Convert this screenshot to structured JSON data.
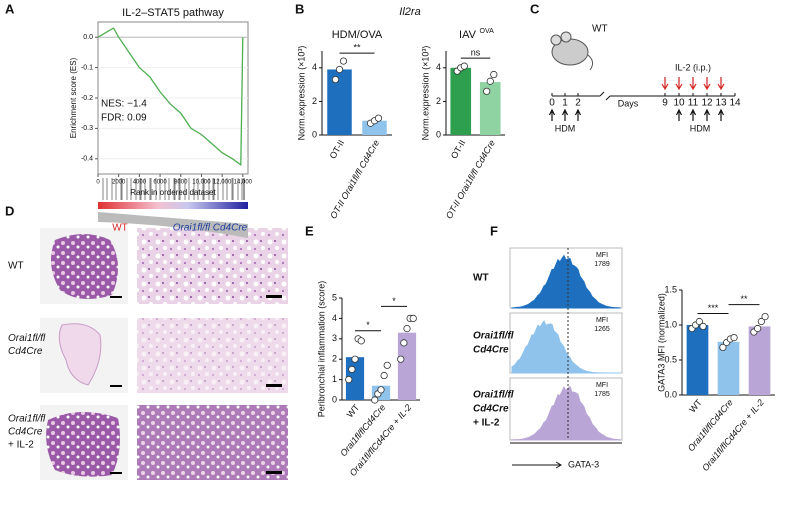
{
  "figure": {
    "panel_labels": [
      "A",
      "B",
      "C",
      "D",
      "E",
      "F"
    ],
    "b_title": "Il2ra",
    "timeline": {
      "strain": "WT",
      "treatment": "IL-2 (i.p.)",
      "axis_label": "Days",
      "day_ticks": [
        0,
        1,
        2,
        9,
        10,
        11,
        12,
        13,
        14
      ],
      "challenge_labels": [
        "HDM",
        "HDM"
      ]
    },
    "histology": {
      "row_labels": [
        [
          "WT"
        ],
        [
          "Orai1fl/fl",
          "Cd4Cre"
        ],
        [
          "Orai1fl/fl",
          "Cd4Cre",
          "+ IL-2"
        ]
      ]
    },
    "flow": {
      "row_labels": [
        [
          "WT"
        ],
        [
          "Orai1fl/fl",
          "Cd4Cre"
        ],
        [
          "Orai1fl/fl",
          "Cd4Cre",
          "+ IL-2"
        ]
      ],
      "mfi_label": "MFI",
      "mfi": [
        1789,
        1265,
        1785
      ],
      "colors": [
        "#1f6fbf",
        "#8fc3ec",
        "#b9a6d6"
      ],
      "x_label": "GATA-3"
    }
  },
  "chart_data": [
    {
      "type": "line",
      "title": "IL-2–STAT5 pathway",
      "y_label": "Enrichment score (ES)",
      "x_label": "Rank in ordered dataset",
      "color": "#4caf50",
      "x": [
        0,
        500,
        1000,
        1500,
        2000,
        3000,
        4000,
        5000,
        6000,
        7000,
        8000,
        9000,
        10000,
        11000,
        12000,
        13000,
        13800,
        14000
      ],
      "values": [
        0,
        0.01,
        0.02,
        0.03,
        0,
        -0.05,
        -0.1,
        -0.13,
        -0.18,
        -0.22,
        -0.25,
        -0.3,
        -0.32,
        -0.35,
        -0.38,
        -0.4,
        -0.42,
        0
      ],
      "xlim": [
        0,
        14500
      ],
      "ylim": [
        -0.45,
        0.05
      ],
      "yticks": [
        {
          "value": 0,
          "label": "0.0"
        },
        -0.1,
        -0.2,
        -0.3,
        -0.4
      ],
      "xticks": [
        0,
        2000,
        4000,
        6000,
        8000,
        {
          "value": 10000,
          "label": "10,000"
        },
        {
          "value": 12000,
          "label": "12,000"
        },
        {
          "value": 14000,
          "label": "14,000"
        }
      ],
      "annotations": [
        "NES: −1.4",
        "FDR: 0.09"
      ],
      "group_labels": [
        "WT",
        "Orai1fl/fl Cd4Cre"
      ],
      "group_colors": [
        "#d62728",
        "#1f3f9f"
      ]
    },
    {
      "type": "bar",
      "title": "HDM/OVA",
      "y_label": "Norm.expression (×10³)",
      "categories": [
        "OT-II",
        "OT-II Orai1fl/fl Cd4Cre"
      ],
      "values": [
        3.9,
        0.85
      ],
      "points": [
        [
          3.3,
          3.9,
          4.4
        ],
        [
          0.7,
          0.85,
          1.0
        ]
      ],
      "colors": [
        "#1f6fbf",
        "#8fc3ec"
      ],
      "ylim": [
        0,
        5
      ],
      "yticks": [
        0,
        2,
        4
      ],
      "sig": [
        "**"
      ]
    },
    {
      "type": "bar",
      "title": "IAV",
      "title_sup": "OVA",
      "y_label": "Norm.expression (×10³)",
      "categories": [
        "OT-II",
        "OT-II Orai1fl/fl Cd4Cre"
      ],
      "values": [
        4.0,
        3.15
      ],
      "points": [
        [
          3.8,
          4.0,
          4.1
        ],
        [
          2.6,
          3.2,
          3.6
        ]
      ],
      "colors": [
        "#2e9e4f",
        "#8fd3a3"
      ],
      "ylim": [
        0,
        5
      ],
      "yticks": [
        0,
        2,
        4
      ],
      "sig": [
        "ns"
      ]
    },
    {
      "type": "bar",
      "y_label": "Peribronchial inflammation (score)",
      "categories": [
        "WT",
        "Orai1fl/flCd4Cre",
        "Orai1fl/flCd4Cre + IL-2"
      ],
      "values": [
        2.1,
        0.7,
        3.3
      ],
      "points": [
        [
          1,
          1.5,
          2,
          3,
          2.9
        ],
        [
          0,
          0.3,
          0.5,
          1.2,
          1.7
        ],
        [
          2,
          2.8,
          3.5,
          4,
          4
        ]
      ],
      "colors": [
        "#1f6fbf",
        "#8fc3ec",
        "#b9a6d6"
      ],
      "ylim": [
        0,
        5
      ],
      "yticks": [
        0,
        1,
        2,
        3,
        4,
        5
      ],
      "sig": [
        "*",
        "*"
      ]
    },
    {
      "type": "bar",
      "y_label": "GATA3 MFI (normalized)",
      "categories": [
        "WT",
        "Orai1fl/flCd4Cre",
        "Orai1fl/flCd4Cre + IL-2"
      ],
      "values": [
        1.0,
        0.76,
        0.98
      ],
      "points": [
        [
          0.95,
          1.0,
          1.05,
          0.98
        ],
        [
          0.68,
          0.75,
          0.8,
          0.82
        ],
        [
          0.9,
          0.95,
          1.05,
          1.12
        ]
      ],
      "colors": [
        "#1f6fbf",
        "#8fc3ec",
        "#b9a6d6"
      ],
      "ylim": [
        0,
        1.5
      ],
      "yticks": [
        {
          "value": 0,
          "label": "0.0"
        },
        0.5,
        {
          "value": 1,
          "label": "1.0"
        },
        1.5
      ],
      "sig": [
        "***",
        "**"
      ]
    }
  ]
}
